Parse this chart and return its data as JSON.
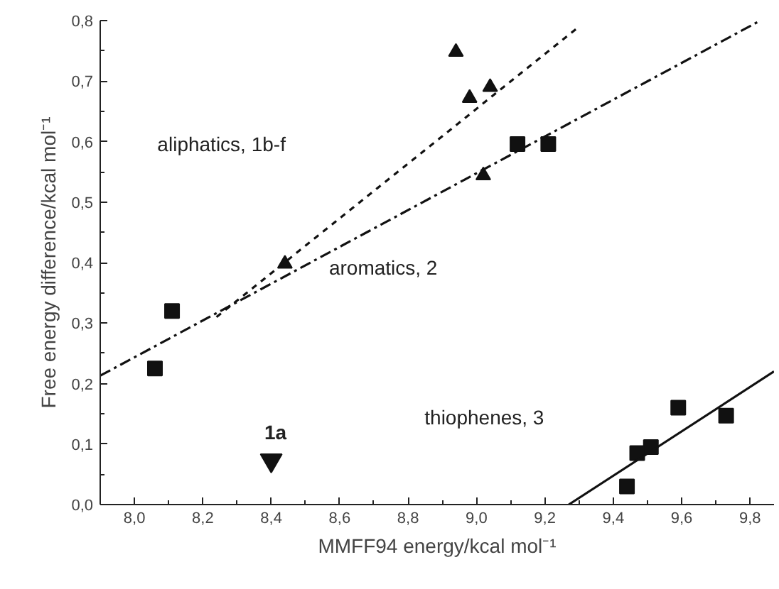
{
  "chart_data": {
    "type": "scatter",
    "xlabel": "MMFF94 energy/kcal mol⁻¹",
    "ylabel": "Free energy difference/kcal mol⁻¹",
    "xlim": [
      7.9,
      9.87
    ],
    "ylim": [
      0,
      0.8
    ],
    "xticks": [
      {
        "value": 8.0,
        "label": "8,0"
      },
      {
        "value": 8.2,
        "label": "8,2"
      },
      {
        "value": 8.4,
        "label": "8,4"
      },
      {
        "value": 8.6,
        "label": "8,6"
      },
      {
        "value": 8.8,
        "label": "8,8"
      },
      {
        "value": 9.0,
        "label": "9,0"
      },
      {
        "value": 9.2,
        "label": "9,2"
      },
      {
        "value": 9.4,
        "label": "9,4"
      },
      {
        "value": 9.6,
        "label": "9,6"
      },
      {
        "value": 9.8,
        "label": "9,8"
      }
    ],
    "yticks": [
      {
        "value": 0.0,
        "label": "0,0"
      },
      {
        "value": 0.1,
        "label": "0,1"
      },
      {
        "value": 0.2,
        "label": "0,2"
      },
      {
        "value": 0.3,
        "label": "0,3"
      },
      {
        "value": 0.4,
        "label": "0,4"
      },
      {
        "value": 0.5,
        "label": "0,5"
      },
      {
        "value": 0.6,
        "label": "0,6"
      },
      {
        "value": 0.7,
        "label": "0,7"
      },
      {
        "value": 0.8,
        "label": "0,8"
      }
    ],
    "grid": false,
    "series": [
      {
        "type": "scatter",
        "marker": "triangle",
        "color": "#111111",
        "x": [
          8.94,
          8.98,
          9.04,
          9.02,
          8.44
        ],
        "values": [
          0.748,
          0.672,
          0.69,
          0.544,
          0.398
        ]
      },
      {
        "type": "scatter",
        "marker": "square",
        "color": "#111111",
        "x": [
          9.12,
          9.21,
          8.11,
          8.06
        ],
        "values": [
          0.596,
          0.596,
          0.32,
          0.225
        ]
      },
      {
        "type": "scatter",
        "marker": "square",
        "color": "#111111",
        "x": [
          9.44,
          9.47,
          9.51,
          9.59,
          9.73
        ],
        "values": [
          0.03,
          0.085,
          0.095,
          0.16,
          0.147
        ]
      },
      {
        "type": "scatter",
        "marker": "triangle",
        "color": "#111111",
        "x": [
          8.4
        ],
        "values": [
          0.073
        ]
      },
      {
        "type": "line",
        "line_style": "dashed",
        "color": "#111111",
        "x": [
          8.24,
          9.3
        ],
        "values": [
          0.31,
          0.79
        ]
      },
      {
        "type": "line",
        "line_style": "dashdot",
        "color": "#111111",
        "x": [
          7.9,
          9.83
        ],
        "values": [
          0.213,
          0.8
        ]
      },
      {
        "type": "line",
        "line_style": "solid",
        "color": "#111111",
        "x": [
          9.27,
          9.87
        ],
        "values": [
          0.0,
          0.22
        ]
      }
    ],
    "annotations": [
      "aliphatics, 1b-f",
      "aromatics, 2",
      "thiophenes, 3",
      "1a"
    ]
  }
}
